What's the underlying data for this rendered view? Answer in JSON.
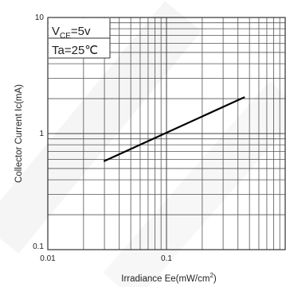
{
  "chart_data": {
    "type": "line",
    "title": "",
    "xlabel": "Irradiance Ee(mW/cm²)",
    "xlabel_parts": {
      "base": "Irradiance Ee(mW/cm",
      "sup": "2",
      "tail": ")"
    },
    "ylabel": "Collector Current Ic(mA)",
    "x_scale": "log",
    "y_scale": "log",
    "xlim": [
      0.01,
      1
    ],
    "ylim": [
      0.1,
      10
    ],
    "x_ticks": [
      {
        "value": 0.01,
        "label": "0.01"
      },
      {
        "value": 0.1,
        "label": "0.1"
      }
    ],
    "y_ticks": [
      {
        "value": 10,
        "label": "10"
      },
      {
        "value": 1,
        "label": "1"
      },
      {
        "value": 0.1,
        "label": "0.1"
      }
    ],
    "grid": true,
    "series": [
      {
        "x": [
          0.03,
          0.45
        ],
        "y": [
          0.58,
          2.05
        ],
        "color": "#000000"
      }
    ],
    "annotations": {
      "vce": {
        "main": "V",
        "sub": "CE",
        "rest": "=5v"
      },
      "ta": "Ta=25℃"
    }
  }
}
